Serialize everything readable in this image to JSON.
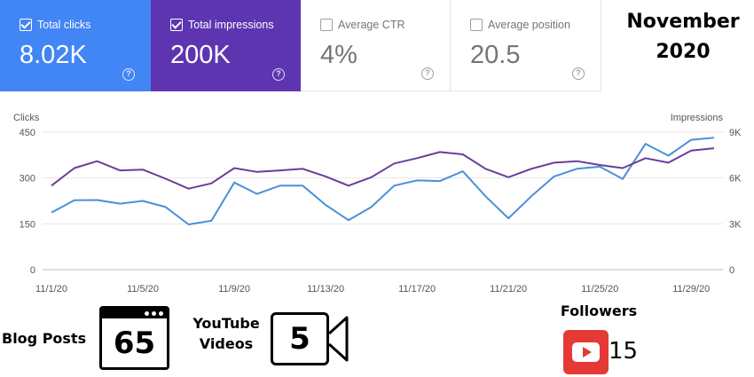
{
  "cards": [
    {
      "id": "clicks",
      "label": "Total clicks",
      "value": "8.02K",
      "checked": true,
      "help": "?"
    },
    {
      "id": "impressions",
      "label": "Total impressions",
      "value": "200K",
      "checked": true,
      "help": "?"
    },
    {
      "id": "ctr",
      "label": "Average CTR",
      "value": "4%",
      "checked": false,
      "help": "?"
    },
    {
      "id": "position",
      "label": "Average position",
      "value": "20.5",
      "checked": false,
      "help": "?"
    }
  ],
  "month_title": [
    "November",
    "2020"
  ],
  "chart_data": {
    "type": "line",
    "x": [
      "11/1/20",
      "11/2/20",
      "11/3/20",
      "11/4/20",
      "11/5/20",
      "11/6/20",
      "11/7/20",
      "11/8/20",
      "11/9/20",
      "11/10/20",
      "11/11/20",
      "11/12/20",
      "11/13/20",
      "11/14/20",
      "11/15/20",
      "11/16/20",
      "11/17/20",
      "11/18/20",
      "11/19/20",
      "11/20/20",
      "11/21/20",
      "11/22/20",
      "11/23/20",
      "11/24/20",
      "11/25/20",
      "11/26/20",
      "11/27/20",
      "11/28/20",
      "11/29/20",
      "11/30/20"
    ],
    "x_ticks": [
      "11/1/20",
      "11/5/20",
      "11/9/20",
      "11/13/20",
      "11/17/20",
      "11/21/20",
      "11/25/20",
      "11/29/20"
    ],
    "left_axis": {
      "label": "Clicks",
      "ticks": [
        "0",
        "150",
        "300",
        "450"
      ],
      "range": [
        0,
        450
      ]
    },
    "right_axis": {
      "label": "Impressions",
      "ticks": [
        "0",
        "3K",
        "6K",
        "9K"
      ],
      "range": [
        0,
        9000
      ]
    },
    "grid": true,
    "series": [
      {
        "axis": "left",
        "color": "#4a90d9",
        "values": [
          187,
          227,
          228,
          216,
          225,
          205,
          148,
          160,
          285,
          248,
          275,
          275,
          212,
          162,
          205,
          275,
          292,
          290,
          322,
          240,
          168,
          240,
          305,
          330,
          337,
          297,
          412,
          373,
          425,
          432
        ]
      },
      {
        "axis": "right",
        "color": "#6a3d9a",
        "values": [
          5500,
          6650,
          7100,
          6500,
          6550,
          5950,
          5300,
          5650,
          6650,
          6400,
          6500,
          6600,
          6100,
          5500,
          6050,
          6950,
          7300,
          7700,
          7550,
          6600,
          6050,
          6600,
          7000,
          7100,
          6850,
          6650,
          7300,
          7000,
          7800,
          7950
        ]
      }
    ]
  },
  "stats": {
    "blog_label": "Blog Posts",
    "blog_count": "65",
    "youtube_label": [
      "YouTube",
      "Videos"
    ],
    "youtube_count": "5",
    "followers_label": "Followers",
    "followers_count": "15"
  },
  "colors": {
    "clicks": "#4285f4",
    "impressions": "#5e35b1",
    "youtube_red": "#e53935"
  }
}
